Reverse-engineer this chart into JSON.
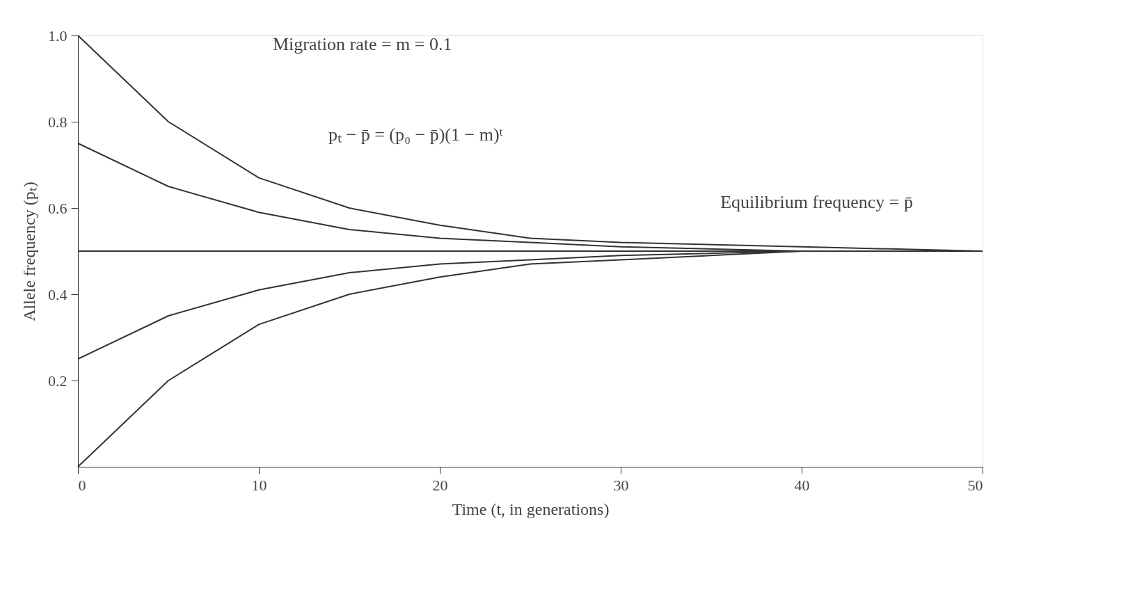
{
  "chart_data": {
    "type": "line",
    "xlabel": "Time (t, in generations)",
    "ylabel": "Allele frequency (pₜ)",
    "x": [
      0,
      5,
      10,
      15,
      20,
      25,
      30,
      40,
      50
    ],
    "series": [
      {
        "color": "#333333",
        "values": [
          1.0,
          0.8,
          0.67,
          0.6,
          0.56,
          0.53,
          0.52,
          0.51,
          0.5
        ]
      },
      {
        "color": "#333333",
        "values": [
          0.75,
          0.65,
          0.59,
          0.55,
          0.53,
          0.52,
          0.51,
          0.5,
          0.5
        ]
      },
      {
        "color": "#333333",
        "values": [
          0.5,
          0.5,
          0.5,
          0.5,
          0.5,
          0.5,
          0.5,
          0.5,
          0.5
        ]
      },
      {
        "color": "#333333",
        "values": [
          0.25,
          0.35,
          0.41,
          0.45,
          0.47,
          0.48,
          0.49,
          0.5,
          0.5
        ]
      },
      {
        "color": "#333333",
        "values": [
          0.0,
          0.2,
          0.33,
          0.4,
          0.44,
          0.47,
          0.48,
          0.5,
          0.5
        ]
      }
    ],
    "xlim": [
      0,
      50
    ],
    "xticks": [
      0,
      10,
      20,
      30,
      40,
      50
    ],
    "ylim": [
      0,
      1.0
    ],
    "yticks": [
      0.2,
      0.4,
      0.6,
      0.8,
      {
        "value": 1.0,
        "label": "1.0"
      }
    ],
    "grid": false,
    "legend": false,
    "marker": "none",
    "line_style": "solid",
    "annotations": [
      "Migration rate = m = 0.1",
      "pₜ − p̄ = (p₀ − p̄)(1 − m)ᵗ",
      {
        "text": "Equilibrium frequency = p̄",
        "x": 45,
        "y": 0.5
      }
    ]
  }
}
